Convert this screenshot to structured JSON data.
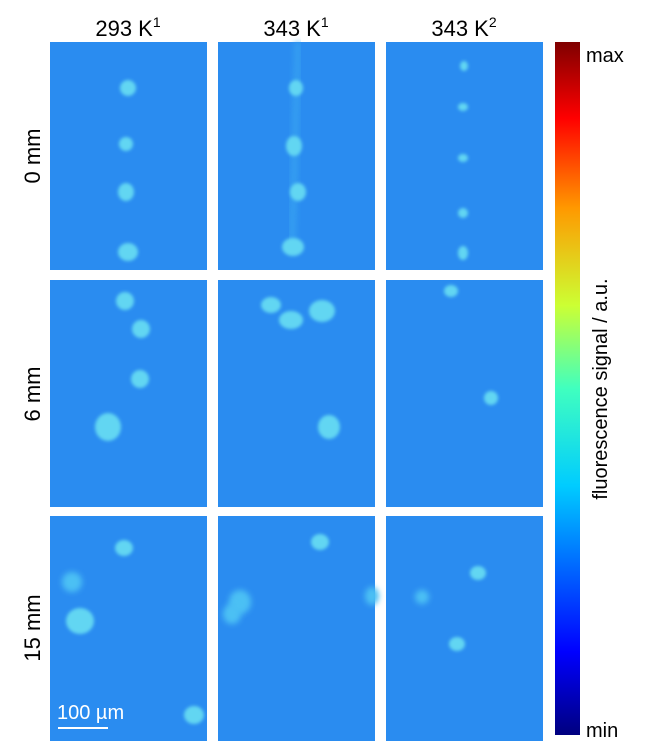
{
  "columns": [
    {
      "label": "293 K",
      "sup": "1"
    },
    {
      "label": "343 K",
      "sup": "1"
    },
    {
      "label": "343 K",
      "sup": "2"
    }
  ],
  "rows": [
    "0 mm",
    "6 mm",
    "15 mm"
  ],
  "colorbar": {
    "max": "max",
    "min": "min",
    "label": "fluorescence signal / a.u."
  },
  "scale_bar": "100 µm"
}
